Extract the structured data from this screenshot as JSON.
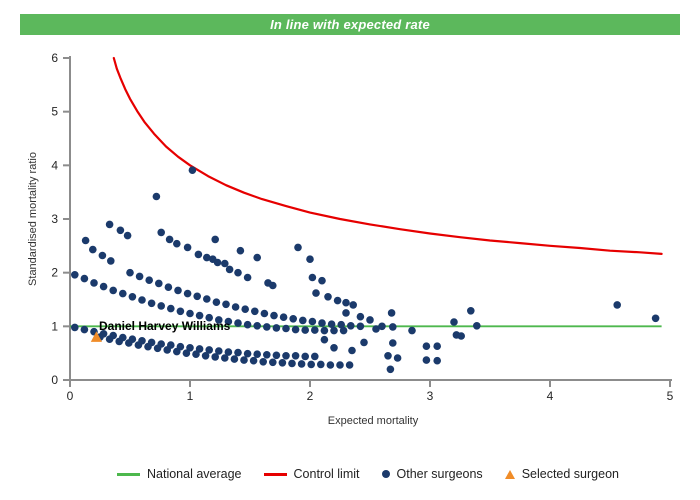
{
  "banner": {
    "text": "In line with expected rate",
    "bg_color": "#5cb85c",
    "text_color": "#ffffff"
  },
  "chart_data": {
    "type": "scatter",
    "title": "",
    "xlabel": "Expected mortality",
    "ylabel": "Standardised mortality ratio",
    "xlim": [
      0,
      5
    ],
    "ylim": [
      0,
      6
    ],
    "x_ticks": [
      0,
      1,
      2,
      3,
      4,
      5
    ],
    "y_ticks": [
      0,
      1,
      2,
      3,
      4,
      5,
      6
    ],
    "grid": false,
    "axis_color": "#8c8c8c",
    "annotation": {
      "text": "Daniel Harvey Williams",
      "x": 0.24,
      "y": 1.1
    },
    "national_average": {
      "value": 1.0,
      "color": "#4db84d",
      "x_start": 0,
      "x_end": 4.93
    },
    "control_limit": {
      "color": "#e60000",
      "points": [
        [
          0.365,
          6.0
        ],
        [
          0.39,
          5.8
        ],
        [
          0.42,
          5.63
        ],
        [
          0.46,
          5.42
        ],
        [
          0.5,
          5.24
        ],
        [
          0.56,
          5.01
        ],
        [
          0.62,
          4.81
        ],
        [
          0.7,
          4.59
        ],
        [
          0.8,
          4.35
        ],
        [
          0.9,
          4.16
        ],
        [
          1.0,
          4.0
        ],
        [
          1.15,
          3.8
        ],
        [
          1.3,
          3.63
        ],
        [
          1.45,
          3.49
        ],
        [
          1.6,
          3.37
        ],
        [
          1.8,
          3.24
        ],
        [
          2.0,
          3.12
        ],
        [
          2.25,
          3.0
        ],
        [
          2.5,
          2.9
        ],
        [
          2.75,
          2.81
        ],
        [
          3.0,
          2.73
        ],
        [
          3.25,
          2.66
        ],
        [
          3.5,
          2.6
        ],
        [
          3.75,
          2.55
        ],
        [
          4.0,
          2.5
        ],
        [
          4.25,
          2.46
        ],
        [
          4.5,
          2.41
        ],
        [
          4.75,
          2.38
        ],
        [
          4.93,
          2.35
        ]
      ]
    },
    "selected_surgeon": {
      "x": 0.22,
      "y": 0.8,
      "color": "#f08c28"
    },
    "other_surgeons": {
      "color": "#1b3a6b",
      "points": [
        [
          0.04,
          1.96
        ],
        [
          0.12,
          1.89
        ],
        [
          0.2,
          1.81
        ],
        [
          0.28,
          1.74
        ],
        [
          0.36,
          1.67
        ],
        [
          0.44,
          1.61
        ],
        [
          0.52,
          1.55
        ],
        [
          0.6,
          1.49
        ],
        [
          0.68,
          1.43
        ],
        [
          0.76,
          1.38
        ],
        [
          0.84,
          1.33
        ],
        [
          0.92,
          1.28
        ],
        [
          1.0,
          1.24
        ],
        [
          1.08,
          1.2
        ],
        [
          1.16,
          1.16
        ],
        [
          1.24,
          1.12
        ],
        [
          1.32,
          1.09
        ],
        [
          1.4,
          1.06
        ],
        [
          1.48,
          1.03
        ],
        [
          1.56,
          1.01
        ],
        [
          1.64,
          0.99
        ],
        [
          1.72,
          0.97
        ],
        [
          1.8,
          0.96
        ],
        [
          1.88,
          0.94
        ],
        [
          1.96,
          0.93
        ],
        [
          2.04,
          0.93
        ],
        [
          2.12,
          0.92
        ],
        [
          2.2,
          0.92
        ],
        [
          2.28,
          0.92
        ],
        [
          0.5,
          2.0
        ],
        [
          0.58,
          1.93
        ],
        [
          0.66,
          1.86
        ],
        [
          0.74,
          1.8
        ],
        [
          0.82,
          1.73
        ],
        [
          0.9,
          1.67
        ],
        [
          0.98,
          1.61
        ],
        [
          1.06,
          1.56
        ],
        [
          1.14,
          1.51
        ],
        [
          1.22,
          1.45
        ],
        [
          1.3,
          1.41
        ],
        [
          1.38,
          1.36
        ],
        [
          1.46,
          1.32
        ],
        [
          1.54,
          1.28
        ],
        [
          1.62,
          1.24
        ],
        [
          1.7,
          1.2
        ],
        [
          1.78,
          1.17
        ],
        [
          1.86,
          1.14
        ],
        [
          1.94,
          1.11
        ],
        [
          2.02,
          1.09
        ],
        [
          2.1,
          1.06
        ],
        [
          2.18,
          1.04
        ],
        [
          2.26,
          1.03
        ],
        [
          2.34,
          1.01
        ],
        [
          2.42,
          1.0
        ],
        [
          0.04,
          0.98
        ],
        [
          0.12,
          0.94
        ],
        [
          0.2,
          0.9
        ],
        [
          0.28,
          0.86
        ],
        [
          0.36,
          0.83
        ],
        [
          0.44,
          0.79
        ],
        [
          0.52,
          0.76
        ],
        [
          0.6,
          0.73
        ],
        [
          0.68,
          0.7
        ],
        [
          0.76,
          0.67
        ],
        [
          0.84,
          0.65
        ],
        [
          0.92,
          0.62
        ],
        [
          1.0,
          0.6
        ],
        [
          1.08,
          0.58
        ],
        [
          1.16,
          0.56
        ],
        [
          1.24,
          0.54
        ],
        [
          1.32,
          0.52
        ],
        [
          1.4,
          0.51
        ],
        [
          1.48,
          0.49
        ],
        [
          1.56,
          0.48
        ],
        [
          1.64,
          0.47
        ],
        [
          1.72,
          0.46
        ],
        [
          1.8,
          0.45
        ],
        [
          1.88,
          0.45
        ],
        [
          1.96,
          0.44
        ],
        [
          2.04,
          0.44
        ],
        [
          0.25,
          0.8
        ],
        [
          0.33,
          0.76
        ],
        [
          0.41,
          0.72
        ],
        [
          0.49,
          0.69
        ],
        [
          0.57,
          0.65
        ],
        [
          0.65,
          0.62
        ],
        [
          0.73,
          0.59
        ],
        [
          0.81,
          0.56
        ],
        [
          0.89,
          0.53
        ],
        [
          0.97,
          0.5
        ],
        [
          1.05,
          0.48
        ],
        [
          1.13,
          0.45
        ],
        [
          1.21,
          0.43
        ],
        [
          1.29,
          0.41
        ],
        [
          1.37,
          0.39
        ],
        [
          1.45,
          0.37
        ],
        [
          1.53,
          0.36
        ],
        [
          1.61,
          0.34
        ],
        [
          1.69,
          0.33
        ],
        [
          1.77,
          0.32
        ],
        [
          1.85,
          0.31
        ],
        [
          1.93,
          0.3
        ],
        [
          2.01,
          0.29
        ],
        [
          2.09,
          0.29
        ],
        [
          2.17,
          0.28
        ],
        [
          2.25,
          0.28
        ],
        [
          2.33,
          0.28
        ],
        [
          0.33,
          2.9
        ],
        [
          0.42,
          2.79
        ],
        [
          0.48,
          2.69
        ],
        [
          0.72,
          3.42
        ],
        [
          1.02,
          3.91
        ],
        [
          0.76,
          2.75
        ],
        [
          0.83,
          2.62
        ],
        [
          0.89,
          2.54
        ],
        [
          0.98,
          2.47
        ],
        [
          1.21,
          2.62
        ],
        [
          1.07,
          2.34
        ],
        [
          1.14,
          2.28
        ],
        [
          1.19,
          2.25
        ],
        [
          1.23,
          2.19
        ],
        [
          1.29,
          2.17
        ],
        [
          1.42,
          2.41
        ],
        [
          1.56,
          2.28
        ],
        [
          1.33,
          2.06
        ],
        [
          1.4,
          2.0
        ],
        [
          1.48,
          1.91
        ],
        [
          1.65,
          1.81
        ],
        [
          1.69,
          1.76
        ],
        [
          2.0,
          2.25
        ],
        [
          2.02,
          1.91
        ],
        [
          2.1,
          1.85
        ],
        [
          2.23,
          1.48
        ],
        [
          2.3,
          1.44
        ],
        [
          2.36,
          1.4
        ],
        [
          2.05,
          1.62
        ],
        [
          2.15,
          1.55
        ],
        [
          2.3,
          1.25
        ],
        [
          2.42,
          1.18
        ],
        [
          2.5,
          1.12
        ],
        [
          2.55,
          0.95
        ],
        [
          2.6,
          1.0
        ],
        [
          2.68,
          1.25
        ],
        [
          2.69,
          0.99
        ],
        [
          2.85,
          0.92
        ],
        [
          2.69,
          0.69
        ],
        [
          2.65,
          0.45
        ],
        [
          2.73,
          0.41
        ],
        [
          2.67,
          0.2
        ],
        [
          2.97,
          0.63
        ],
        [
          3.06,
          0.63
        ],
        [
          2.97,
          0.37
        ],
        [
          3.06,
          0.36
        ],
        [
          3.2,
          1.08
        ],
        [
          3.22,
          0.84
        ],
        [
          3.26,
          0.82
        ],
        [
          3.34,
          1.29
        ],
        [
          3.39,
          1.01
        ],
        [
          4.56,
          1.4
        ],
        [
          4.88,
          1.15
        ],
        [
          2.2,
          0.6
        ],
        [
          2.35,
          0.55
        ],
        [
          2.12,
          0.75
        ],
        [
          2.45,
          0.7
        ],
        [
          1.9,
          2.47
        ],
        [
          0.13,
          2.6
        ],
        [
          0.19,
          2.43
        ],
        [
          0.27,
          2.32
        ],
        [
          0.34,
          2.22
        ]
      ]
    }
  },
  "legend": {
    "items": [
      {
        "label": "National average",
        "swatch": "line",
        "color": "#4db84d"
      },
      {
        "label": "Control limit",
        "swatch": "line",
        "color": "#e60000"
      },
      {
        "label": "Other surgeons",
        "swatch": "dot",
        "color": "#1b3a6b"
      },
      {
        "label": "Selected surgeon",
        "swatch": "triangle",
        "color": "#f08c28"
      }
    ]
  }
}
